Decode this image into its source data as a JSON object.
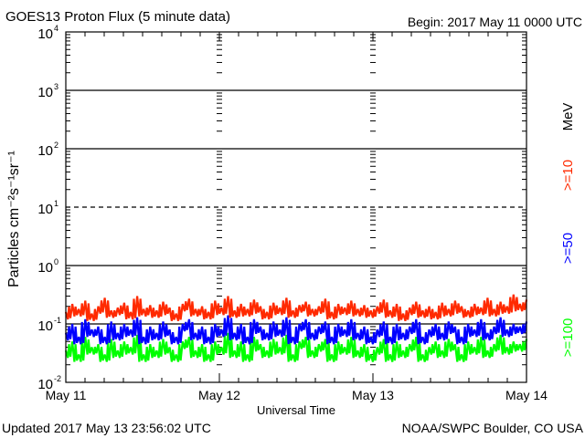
{
  "chart_data": {
    "type": "line",
    "title": "GOES13 Proton Flux (5 minute data)",
    "begin_label": "Begin: 2017 May 11 0000 UTC",
    "xlabel": "Universal Time",
    "ylabel": "Particles cm⁻²s⁻¹sr⁻¹",
    "yscale": "log",
    "ylim": [
      0.01,
      10000
    ],
    "y_ticks": [
      {
        "base": "10",
        "exp": "4"
      },
      {
        "base": "10",
        "exp": "3"
      },
      {
        "base": "10",
        "exp": "2"
      },
      {
        "base": "10",
        "exp": "1"
      },
      {
        "base": "10",
        "exp": "0"
      },
      {
        "base": "10",
        "exp": "-1"
      },
      {
        "base": "10",
        "exp": "-2"
      }
    ],
    "x_ticks": [
      "May 11",
      "May 12",
      "May 13",
      "May 14"
    ],
    "xlim_hours": [
      0,
      72
    ],
    "threshold_lines": [
      {
        "value": 1000,
        "style": "solid"
      },
      {
        "value": 100,
        "style": "solid"
      },
      {
        "value": 10,
        "style": "dashed"
      },
      {
        "value": 1,
        "style": "solid"
      },
      {
        "value": 0.1,
        "style": "solid"
      }
    ],
    "energy_unit": "MeV",
    "series": [
      {
        "name": ">=10",
        "color": "#ff2a00",
        "values": [
          0.16,
          0.22,
          0.18,
          0.25,
          0.15,
          0.2,
          0.28,
          0.17,
          0.19,
          0.23,
          0.16,
          0.3,
          0.18,
          0.21,
          0.17,
          0.24,
          0.19,
          0.15,
          0.22,
          0.27,
          0.18,
          0.2,
          0.16,
          0.25,
          0.19,
          0.3,
          0.17,
          0.22,
          0.18,
          0.26,
          0.2,
          0.16,
          0.23,
          0.19,
          0.28,
          0.17,
          0.21,
          0.24,
          0.18,
          0.2,
          0.27,
          0.16,
          0.22,
          0.19,
          0.25,
          0.18,
          0.21,
          0.17,
          0.2,
          0.26,
          0.17,
          0.22,
          0.15,
          0.19,
          0.24,
          0.17,
          0.2,
          0.16,
          0.23,
          0.18,
          0.25,
          0.2,
          0.17,
          0.22,
          0.19,
          0.28,
          0.18,
          0.24,
          0.2,
          0.32,
          0.22,
          0.26
        ]
      },
      {
        "name": ">=50",
        "color": "#0000ff",
        "values": [
          0.07,
          0.1,
          0.06,
          0.12,
          0.08,
          0.09,
          0.06,
          0.11,
          0.07,
          0.1,
          0.08,
          0.13,
          0.06,
          0.09,
          0.07,
          0.11,
          0.08,
          0.06,
          0.1,
          0.12,
          0.07,
          0.09,
          0.06,
          0.1,
          0.08,
          0.14,
          0.07,
          0.1,
          0.06,
          0.12,
          0.09,
          0.07,
          0.11,
          0.08,
          0.13,
          0.06,
          0.1,
          0.12,
          0.07,
          0.09,
          0.11,
          0.06,
          0.1,
          0.08,
          0.12,
          0.07,
          0.09,
          0.06,
          0.08,
          0.11,
          0.06,
          0.1,
          0.07,
          0.09,
          0.12,
          0.06,
          0.08,
          0.1,
          0.07,
          0.11,
          0.09,
          0.06,
          0.1,
          0.08,
          0.12,
          0.07,
          0.09,
          0.13,
          0.08,
          0.1,
          0.09,
          0.11
        ]
      },
      {
        "name": ">=100",
        "color": "#00ff00",
        "values": [
          0.035,
          0.05,
          0.03,
          0.06,
          0.04,
          0.045,
          0.03,
          0.055,
          0.035,
          0.05,
          0.04,
          0.065,
          0.03,
          0.045,
          0.035,
          0.055,
          0.04,
          0.03,
          0.05,
          0.06,
          0.035,
          0.045,
          0.03,
          0.05,
          0.04,
          0.07,
          0.035,
          0.05,
          0.03,
          0.06,
          0.045,
          0.035,
          0.055,
          0.04,
          0.065,
          0.03,
          0.05,
          0.06,
          0.035,
          0.045,
          0.055,
          0.03,
          0.05,
          0.04,
          0.06,
          0.035,
          0.045,
          0.03,
          0.04,
          0.055,
          0.03,
          0.05,
          0.035,
          0.045,
          0.06,
          0.03,
          0.04,
          0.05,
          0.035,
          0.055,
          0.045,
          0.03,
          0.05,
          0.04,
          0.06,
          0.035,
          0.045,
          0.065,
          0.04,
          0.05,
          0.045,
          0.055
        ]
      }
    ]
  },
  "footer": {
    "updated": "Updated 2017 May 13 23:56:02 UTC",
    "source": "NOAA/SWPC Boulder, CO USA"
  }
}
